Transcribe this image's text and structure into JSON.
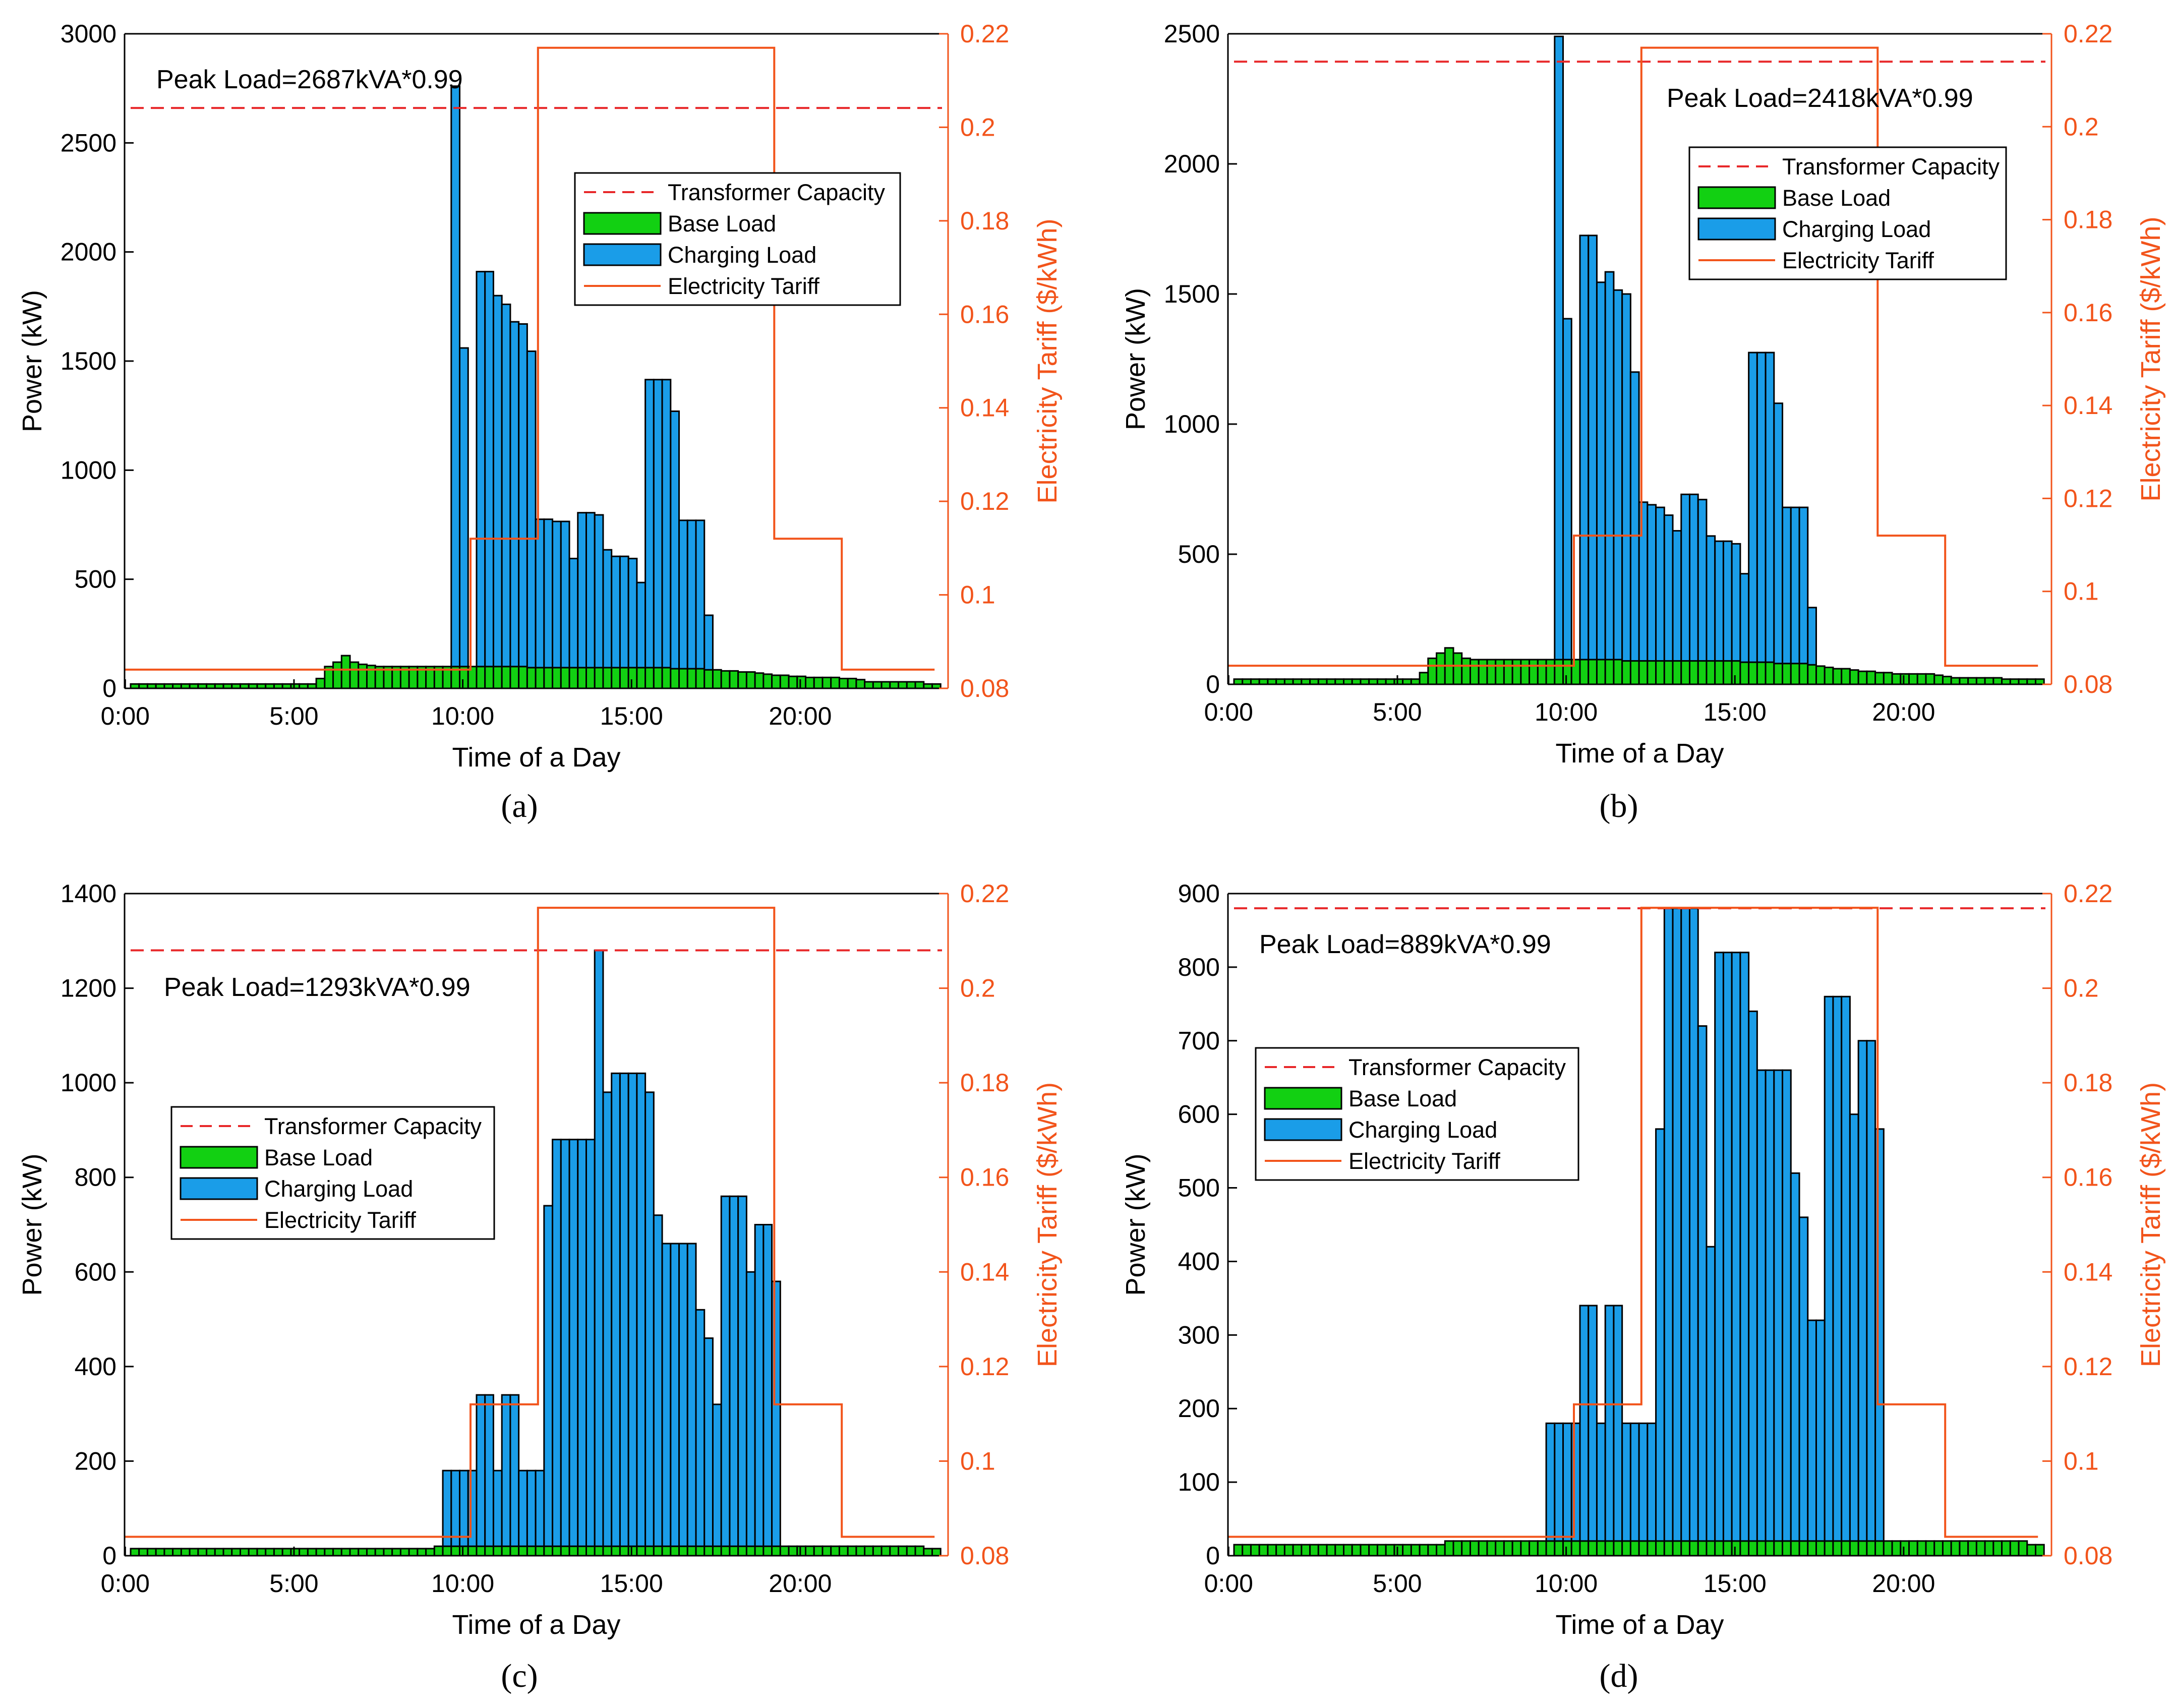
{
  "figure": {
    "panel_labels": [
      "(a)",
      "(b)",
      "(c)",
      "(d)"
    ]
  },
  "colors": {
    "base": "#12d012",
    "charging": "#1a9de8",
    "tariff": "#f2541b",
    "capacity": "#e8282a",
    "right_axis": "#f2541b",
    "axis": "#000000"
  },
  "chart_data": [
    {
      "type": "bar",
      "panel": "(a)",
      "xlabel": "Time of a Day",
      "ylabel": "Power (kW)",
      "y2label": "Electricity Tariff ($/kWh)",
      "ylim": [
        0,
        3000
      ],
      "yticks": [
        0,
        500,
        1000,
        1500,
        2000,
        2500,
        3000
      ],
      "y2lim": [
        0.08,
        0.22
      ],
      "y2ticks": [
        "0.08",
        "0.1",
        "0.12",
        "0.14",
        "0.16",
        "0.18",
        "0.2",
        "0.22"
      ],
      "xticks": [
        "0:00",
        "5:00",
        "10:00",
        "15:00",
        "20:00"
      ],
      "annotation": "Peak Load=2687kVA*0.99",
      "capacity": 2660,
      "legend": [
        "Transformer Capacity",
        "Base Load",
        "Charging Load",
        "Electricity Tariff"
      ],
      "legend_position": "upper-right",
      "tariff": [
        [
          0,
          0.084
        ],
        [
          10.25,
          0.084
        ],
        [
          10.25,
          0.112
        ],
        [
          12.25,
          0.112
        ],
        [
          12.25,
          0.217
        ],
        [
          19.25,
          0.217
        ],
        [
          19.25,
          0.112
        ],
        [
          21.25,
          0.112
        ],
        [
          21.25,
          0.084
        ],
        [
          24,
          0.084
        ]
      ],
      "base_load": [
        20,
        20,
        20,
        20,
        20,
        20,
        20,
        20,
        20,
        20,
        20,
        20,
        20,
        20,
        20,
        20,
        20,
        20,
        20,
        20,
        20,
        20,
        45,
        100,
        120,
        150,
        120,
        110,
        105,
        100,
        100,
        100,
        100,
        100,
        100,
        100,
        100,
        100,
        100,
        100,
        100,
        100,
        100,
        100,
        100,
        100,
        100,
        95,
        95,
        95,
        95,
        95,
        95,
        95,
        95,
        95,
        95,
        95,
        95,
        95,
        95,
        95,
        95,
        95,
        90,
        90,
        90,
        90,
        85,
        85,
        80,
        80,
        75,
        75,
        70,
        65,
        60,
        60,
        55,
        55,
        50,
        50,
        50,
        50,
        45,
        45,
        40,
        30,
        30,
        30,
        30,
        30,
        30,
        30,
        20,
        20
      ],
      "charging_load": [
        0,
        0,
        0,
        0,
        0,
        0,
        0,
        0,
        0,
        0,
        0,
        0,
        0,
        0,
        0,
        0,
        0,
        0,
        0,
        0,
        0,
        0,
        0,
        0,
        0,
        0,
        0,
        0,
        0,
        0,
        0,
        0,
        0,
        0,
        0,
        0,
        0,
        0,
        2660,
        1460,
        0,
        1810,
        1810,
        1700,
        1660,
        1580,
        1570,
        1450,
        680,
        680,
        670,
        670,
        500,
        710,
        710,
        700,
        540,
        510,
        510,
        500,
        390,
        1320,
        1320,
        1320,
        1180,
        680,
        680,
        680,
        250,
        0,
        0,
        0,
        0,
        0,
        0,
        0,
        0,
        0,
        0,
        0,
        0,
        0,
        0,
        0,
        0,
        0,
        0,
        0,
        0,
        0,
        0,
        0,
        0,
        0,
        0,
        0
      ]
    },
    {
      "type": "bar",
      "panel": "(b)",
      "xlabel": "Time of a Day",
      "ylabel": "Power (kW)",
      "y2label": "Electricity Tariff ($/kWh)",
      "ylim": [
        0,
        2500
      ],
      "yticks": [
        0,
        500,
        1000,
        1500,
        2000,
        2500
      ],
      "y2lim": [
        0.08,
        0.22
      ],
      "y2ticks": [
        "0.08",
        "0.1",
        "0.12",
        "0.14",
        "0.16",
        "0.18",
        "0.2",
        "0.22"
      ],
      "xticks": [
        "0:00",
        "5:00",
        "10:00",
        "15:00",
        "20:00"
      ],
      "annotation": "Peak Load=2418kVA*0.99",
      "capacity": 2393,
      "legend": [
        "Transformer Capacity",
        "Base Load",
        "Charging Load",
        "Electricity Tariff"
      ],
      "legend_position": "upper-right",
      "tariff": [
        [
          0,
          0.084
        ],
        [
          10.25,
          0.084
        ],
        [
          10.25,
          0.112
        ],
        [
          12.25,
          0.112
        ],
        [
          12.25,
          0.217
        ],
        [
          19.25,
          0.217
        ],
        [
          19.25,
          0.112
        ],
        [
          21.25,
          0.112
        ],
        [
          21.25,
          0.084
        ],
        [
          24,
          0.084
        ]
      ],
      "base_load": [
        20,
        20,
        20,
        20,
        20,
        20,
        20,
        20,
        20,
        20,
        20,
        20,
        20,
        20,
        20,
        20,
        20,
        20,
        20,
        20,
        20,
        20,
        45,
        100,
        120,
        140,
        120,
        100,
        95,
        95,
        95,
        95,
        95,
        95,
        95,
        95,
        95,
        95,
        95,
        95,
        95,
        95,
        95,
        95,
        95,
        95,
        90,
        90,
        90,
        90,
        90,
        90,
        90,
        90,
        90,
        90,
        90,
        90,
        90,
        90,
        85,
        85,
        85,
        85,
        80,
        80,
        80,
        80,
        75,
        70,
        65,
        60,
        60,
        55,
        50,
        50,
        45,
        45,
        40,
        40,
        40,
        40,
        40,
        35,
        30,
        25,
        25,
        25,
        25,
        25,
        25,
        20,
        20,
        20,
        20,
        20
      ],
      "charging_load": [
        0,
        0,
        0,
        0,
        0,
        0,
        0,
        0,
        0,
        0,
        0,
        0,
        0,
        0,
        0,
        0,
        0,
        0,
        0,
        0,
        0,
        0,
        0,
        0,
        0,
        0,
        0,
        0,
        0,
        0,
        0,
        0,
        0,
        0,
        0,
        0,
        0,
        0,
        2395,
        1310,
        0,
        1630,
        1630,
        1450,
        1490,
        1420,
        1410,
        1110,
        610,
        600,
        590,
        560,
        500,
        640,
        640,
        620,
        480,
        460,
        460,
        450,
        340,
        1190,
        1190,
        1190,
        1000,
        600,
        600,
        600,
        220,
        0,
        0,
        0,
        0,
        0,
        0,
        0,
        0,
        0,
        0,
        0,
        0,
        0,
        0,
        0,
        0,
        0,
        0,
        0,
        0,
        0,
        0,
        0,
        0,
        0,
        0,
        0
      ]
    },
    {
      "type": "bar",
      "panel": "(c)",
      "xlabel": "Time of a Day",
      "ylabel": "Power (kW)",
      "y2label": "Electricity Tariff ($/kWh)",
      "ylim": [
        0,
        1400
      ],
      "yticks": [
        0,
        200,
        400,
        600,
        800,
        1000,
        1200,
        1400
      ],
      "y2lim": [
        0.08,
        0.22
      ],
      "y2ticks": [
        "0.08",
        "0.1",
        "0.12",
        "0.14",
        "0.16",
        "0.18",
        "0.2",
        "0.22"
      ],
      "xticks": [
        "0:00",
        "5:00",
        "10:00",
        "15:00",
        "20:00"
      ],
      "annotation": "Peak Load=1293kVA*0.99",
      "capacity": 1280,
      "legend": [
        "Transformer Capacity",
        "Base Load",
        "Charging Load",
        "Electricity Tariff"
      ],
      "legend_position": "middle-left",
      "tariff": [
        [
          0,
          0.084
        ],
        [
          10.25,
          0.084
        ],
        [
          10.25,
          0.112
        ],
        [
          12.25,
          0.112
        ],
        [
          12.25,
          0.217
        ],
        [
          19.25,
          0.217
        ],
        [
          19.25,
          0.112
        ],
        [
          21.25,
          0.112
        ],
        [
          21.25,
          0.084
        ],
        [
          24,
          0.084
        ]
      ],
      "base_load": [
        15,
        15,
        15,
        15,
        15,
        15,
        15,
        15,
        15,
        15,
        15,
        15,
        15,
        15,
        15,
        15,
        15,
        15,
        15,
        15,
        15,
        15,
        15,
        15,
        15,
        15,
        15,
        15,
        15,
        15,
        15,
        15,
        15,
        15,
        15,
        15,
        20,
        20,
        20,
        20,
        20,
        20,
        20,
        20,
        20,
        20,
        20,
        20,
        20,
        20,
        20,
        20,
        20,
        20,
        20,
        20,
        20,
        20,
        20,
        20,
        20,
        20,
        20,
        20,
        20,
        20,
        20,
        20,
        20,
        20,
        20,
        20,
        20,
        20,
        20,
        20,
        20,
        20,
        20,
        20,
        20,
        20,
        20,
        20,
        20,
        20,
        20,
        20,
        20,
        20,
        20,
        20,
        20,
        20,
        15,
        15
      ],
      "charging_load": [
        0,
        0,
        0,
        0,
        0,
        0,
        0,
        0,
        0,
        0,
        0,
        0,
        0,
        0,
        0,
        0,
        0,
        0,
        0,
        0,
        0,
        0,
        0,
        0,
        0,
        0,
        0,
        0,
        0,
        0,
        0,
        0,
        0,
        0,
        0,
        0,
        0,
        160,
        160,
        160,
        160,
        320,
        320,
        160,
        320,
        320,
        160,
        160,
        160,
        720,
        860,
        860,
        860,
        860,
        860,
        1260,
        960,
        1000,
        1000,
        1000,
        1000,
        960,
        700,
        640,
        640,
        640,
        640,
        500,
        440,
        300,
        740,
        740,
        740,
        580,
        680,
        680,
        560,
        0,
        0,
        0,
        0,
        0,
        0,
        0,
        0,
        0,
        0,
        0,
        0,
        0,
        0,
        0,
        0,
        0,
        0,
        0
      ]
    },
    {
      "type": "bar",
      "panel": "(d)",
      "xlabel": "Time of a Day",
      "ylabel": "Power (kW)",
      "y2label": "Electricity Tariff ($/kWh)",
      "ylim": [
        0,
        900
      ],
      "yticks": [
        0,
        100,
        200,
        300,
        400,
        500,
        600,
        700,
        800,
        900
      ],
      "y2lim": [
        0.08,
        0.22
      ],
      "y2ticks": [
        "0.08",
        "0.1",
        "0.12",
        "0.14",
        "0.16",
        "0.18",
        "0.2",
        "0.22"
      ],
      "xticks": [
        "0:00",
        "5:00",
        "10:00",
        "15:00",
        "20:00"
      ],
      "annotation": "Peak Load=889kVA*0.99",
      "capacity": 880,
      "legend": [
        "Transformer Capacity",
        "Base Load",
        "Charging Load",
        "Electricity Tariff"
      ],
      "legend_position": "middle-left",
      "tariff": [
        [
          0,
          0.084
        ],
        [
          10.25,
          0.084
        ],
        [
          10.25,
          0.112
        ],
        [
          12.25,
          0.112
        ],
        [
          12.25,
          0.217
        ],
        [
          19.25,
          0.217
        ],
        [
          19.25,
          0.112
        ],
        [
          21.25,
          0.112
        ],
        [
          21.25,
          0.084
        ],
        [
          24,
          0.084
        ]
      ],
      "base_load": [
        15,
        15,
        15,
        15,
        15,
        15,
        15,
        15,
        15,
        15,
        15,
        15,
        15,
        15,
        15,
        15,
        15,
        15,
        15,
        15,
        15,
        15,
        15,
        15,
        15,
        20,
        20,
        20,
        20,
        20,
        20,
        20,
        20,
        20,
        20,
        20,
        20,
        20,
        20,
        20,
        20,
        20,
        20,
        20,
        20,
        20,
        20,
        20,
        20,
        20,
        20,
        20,
        20,
        20,
        20,
        20,
        20,
        20,
        20,
        20,
        20,
        20,
        20,
        20,
        20,
        20,
        20,
        20,
        20,
        20,
        20,
        20,
        20,
        20,
        20,
        20,
        20,
        20,
        20,
        20,
        20,
        20,
        20,
        20,
        20,
        20,
        20,
        20,
        20,
        20,
        20,
        20,
        20,
        20,
        15,
        15
      ],
      "charging_load": [
        0,
        0,
        0,
        0,
        0,
        0,
        0,
        0,
        0,
        0,
        0,
        0,
        0,
        0,
        0,
        0,
        0,
        0,
        0,
        0,
        0,
        0,
        0,
        0,
        0,
        0,
        0,
        0,
        0,
        0,
        0,
        0,
        0,
        0,
        0,
        0,
        0,
        160,
        160,
        160,
        160,
        320,
        320,
        160,
        320,
        320,
        160,
        160,
        160,
        160,
        560,
        860,
        860,
        860,
        860,
        700,
        400,
        800,
        800,
        800,
        800,
        720,
        640,
        640,
        640,
        640,
        500,
        440,
        300,
        300,
        740,
        740,
        740,
        580,
        680,
        680,
        560,
        0,
        0,
        0,
        0,
        0,
        0,
        0,
        0,
        0,
        0,
        0,
        0,
        0,
        0,
        0,
        0,
        0,
        0,
        0
      ]
    }
  ]
}
